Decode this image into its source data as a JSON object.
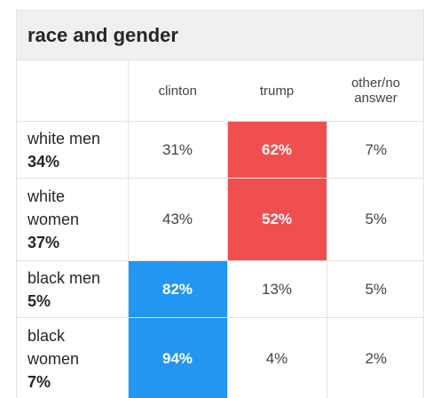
{
  "title": "race and gender",
  "columns": [
    "",
    "clinton",
    "trump",
    "other/no answer"
  ],
  "rows": [
    {
      "group": "white men",
      "share": "34%",
      "clinton": "31%",
      "trump": "62%",
      "other": "7%",
      "winner": "trump"
    },
    {
      "group": "white women",
      "share": "37%",
      "clinton": "43%",
      "trump": "52%",
      "other": "5%",
      "winner": "trump"
    },
    {
      "group": "black men",
      "share": "5%",
      "clinton": "82%",
      "trump": "13%",
      "other": "5%",
      "winner": "clinton"
    },
    {
      "group": "black women",
      "share": "7%",
      "clinton": "94%",
      "trump": "4%",
      "other": "2%",
      "winner": "clinton"
    }
  ],
  "colors": {
    "trump_highlight": "#f14f4f",
    "clinton_highlight": "#2196f3",
    "header_bg": "#f0f0f0"
  }
}
